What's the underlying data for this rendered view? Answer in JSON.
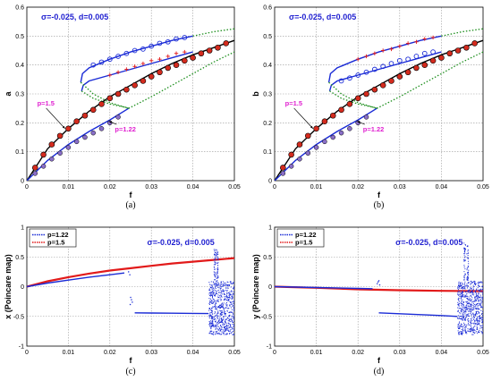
{
  "colors": {
    "blue": "#1a2bd6",
    "red": "#e21a1a",
    "green": "#1e8f1e",
    "black": "#000000",
    "magenta": "#e020d0",
    "marker_red": "#d42b1e",
    "marker_purple": "#8a6fc8"
  },
  "chart_data": [
    {
      "id": "a",
      "type": "line",
      "caption": "(a)",
      "xlabel": "f",
      "ylabel": "a",
      "xlim": [
        0,
        0.05
      ],
      "ylim": [
        0,
        0.6
      ],
      "xticks": [
        "0",
        "0.01",
        "0.02",
        "0.03",
        "0.04",
        "0.05"
      ],
      "yticks": [
        "0",
        "0.1",
        "0.2",
        "0.3",
        "0.4",
        "0.5",
        "0.6"
      ],
      "annotation": "σ=-0.025, d=0.005",
      "labels": [
        {
          "text": "p=1.5",
          "x": 0.0025,
          "y": 0.26
        },
        {
          "text": "p=1.22",
          "x": 0.0212,
          "y": 0.17
        }
      ],
      "series": [
        {
          "style": "solid-black",
          "x": [
            0,
            0.005,
            0.01,
            0.015,
            0.02,
            0.025,
            0.03,
            0.035,
            0.04,
            0.045,
            0.05
          ],
          "y": [
            0,
            0.11,
            0.18,
            0.24,
            0.29,
            0.33,
            0.37,
            0.405,
            0.435,
            0.46,
            0.485
          ]
        },
        {
          "style": "solid-blue",
          "x": [
            0,
            0.005,
            0.01,
            0.015,
            0.02,
            0.0245
          ],
          "y": [
            0,
            0.07,
            0.125,
            0.17,
            0.21,
            0.25
          ]
        },
        {
          "style": "solid-blue",
          "x": [
            0.013,
            0.0134,
            0.015,
            0.02,
            0.025,
            0.03,
            0.035,
            0.04
          ],
          "y": [
            0.34,
            0.37,
            0.39,
            0.42,
            0.445,
            0.465,
            0.485,
            0.5
          ]
        },
        {
          "style": "solid-blue",
          "x": [
            0.0132,
            0.0136,
            0.015,
            0.02,
            0.025,
            0.03,
            0.035,
            0.04
          ],
          "y": [
            0.31,
            0.33,
            0.345,
            0.365,
            0.385,
            0.405,
            0.425,
            0.445
          ]
        },
        {
          "style": "dotted-green",
          "x": [
            0.013,
            0.016,
            0.02,
            0.0245
          ],
          "y": [
            0.34,
            0.3,
            0.27,
            0.25
          ]
        },
        {
          "style": "dotted-green",
          "x": [
            0.0132,
            0.016,
            0.02,
            0.025
          ],
          "y": [
            0.31,
            0.285,
            0.265,
            0.25
          ]
        },
        {
          "style": "dotted-green",
          "x": [
            0.0245,
            0.03,
            0.035,
            0.04,
            0.045,
            0.05
          ],
          "y": [
            0.25,
            0.29,
            0.33,
            0.37,
            0.41,
            0.445
          ]
        },
        {
          "style": "dotted-green",
          "x": [
            0.04,
            0.045,
            0.05
          ],
          "y": [
            0.5,
            0.515,
            0.525
          ]
        },
        {
          "style": "markers-red",
          "x": [
            0.002,
            0.004,
            0.006,
            0.008,
            0.01,
            0.012,
            0.014,
            0.016,
            0.018,
            0.02,
            0.022,
            0.024,
            0.026,
            0.028,
            0.03,
            0.032,
            0.034,
            0.036,
            0.038,
            0.04,
            0.042,
            0.044,
            0.046,
            0.048
          ],
          "y": [
            0.045,
            0.09,
            0.125,
            0.155,
            0.18,
            0.205,
            0.225,
            0.245,
            0.265,
            0.285,
            0.3,
            0.315,
            0.33,
            0.345,
            0.36,
            0.375,
            0.39,
            0.4,
            0.415,
            0.425,
            0.44,
            0.45,
            0.46,
            0.475
          ]
        },
        {
          "style": "markers-purple",
          "x": [
            0.002,
            0.004,
            0.006,
            0.008,
            0.01,
            0.012,
            0.014,
            0.016,
            0.018,
            0.02,
            0.022
          ],
          "y": [
            0.025,
            0.05,
            0.075,
            0.095,
            0.115,
            0.135,
            0.15,
            0.165,
            0.18,
            0.2,
            0.22
          ]
        },
        {
          "style": "markers-open-blue",
          "x": [
            0.016,
            0.018,
            0.02,
            0.022,
            0.024,
            0.026,
            0.028,
            0.03,
            0.032,
            0.034,
            0.036,
            0.038
          ],
          "y": [
            0.4,
            0.41,
            0.42,
            0.43,
            0.44,
            0.45,
            0.455,
            0.465,
            0.475,
            0.48,
            0.49,
            0.495
          ]
        },
        {
          "style": "markers-plus-red",
          "x": [
            0.02,
            0.022,
            0.024,
            0.026,
            0.028,
            0.03,
            0.032,
            0.034,
            0.036,
            0.038
          ],
          "y": [
            0.365,
            0.375,
            0.385,
            0.395,
            0.405,
            0.415,
            0.42,
            0.43,
            0.44,
            0.445
          ]
        }
      ]
    },
    {
      "id": "b",
      "type": "line",
      "caption": "(b)",
      "xlabel": "f",
      "ylabel": "b",
      "xlim": [
        0,
        0.05
      ],
      "ylim": [
        0,
        0.6
      ],
      "xticks": [
        "0",
        "0.01",
        "0.02",
        "0.03",
        "0.04",
        "0.05"
      ],
      "yticks": [
        "0",
        "0.1",
        "0.2",
        "0.3",
        "0.4",
        "0.5",
        "0.6"
      ],
      "annotation": "σ=-0.025, d=0.005",
      "labels": [
        {
          "text": "p=1.5",
          "x": 0.0025,
          "y": 0.26
        },
        {
          "text": "p=1.22",
          "x": 0.0212,
          "y": 0.17
        }
      ],
      "series": [
        {
          "style": "solid-black",
          "x": [
            0,
            0.005,
            0.01,
            0.015,
            0.02,
            0.025,
            0.03,
            0.035,
            0.04,
            0.045,
            0.05
          ],
          "y": [
            0,
            0.11,
            0.18,
            0.24,
            0.29,
            0.33,
            0.37,
            0.405,
            0.435,
            0.46,
            0.485
          ]
        },
        {
          "style": "solid-blue",
          "x": [
            0,
            0.005,
            0.01,
            0.015,
            0.02,
            0.0245
          ],
          "y": [
            0,
            0.07,
            0.125,
            0.17,
            0.21,
            0.25
          ]
        },
        {
          "style": "solid-blue",
          "x": [
            0.013,
            0.0134,
            0.015,
            0.02,
            0.025,
            0.03,
            0.035,
            0.04
          ],
          "y": [
            0.34,
            0.37,
            0.39,
            0.42,
            0.445,
            0.465,
            0.485,
            0.5
          ]
        },
        {
          "style": "solid-blue",
          "x": [
            0.0132,
            0.0136,
            0.015,
            0.02,
            0.025,
            0.03,
            0.035,
            0.04
          ],
          "y": [
            0.31,
            0.33,
            0.345,
            0.365,
            0.385,
            0.405,
            0.425,
            0.445
          ]
        },
        {
          "style": "dotted-green",
          "x": [
            0.013,
            0.016,
            0.02,
            0.0245
          ],
          "y": [
            0.34,
            0.3,
            0.27,
            0.25
          ]
        },
        {
          "style": "dotted-green",
          "x": [
            0.0132,
            0.016,
            0.02,
            0.025
          ],
          "y": [
            0.31,
            0.285,
            0.265,
            0.25
          ]
        },
        {
          "style": "dotted-green",
          "x": [
            0.0245,
            0.03,
            0.035,
            0.04,
            0.045,
            0.05
          ],
          "y": [
            0.25,
            0.29,
            0.33,
            0.37,
            0.41,
            0.445
          ]
        },
        {
          "style": "dotted-green",
          "x": [
            0.04,
            0.045,
            0.05
          ],
          "y": [
            0.5,
            0.515,
            0.525
          ]
        },
        {
          "style": "markers-red",
          "x": [
            0.002,
            0.004,
            0.006,
            0.008,
            0.01,
            0.012,
            0.014,
            0.016,
            0.018,
            0.02,
            0.022,
            0.024,
            0.026,
            0.028,
            0.03,
            0.032,
            0.034,
            0.036,
            0.038,
            0.04,
            0.042,
            0.044,
            0.046,
            0.048
          ],
          "y": [
            0.045,
            0.09,
            0.125,
            0.155,
            0.18,
            0.205,
            0.225,
            0.245,
            0.265,
            0.285,
            0.3,
            0.315,
            0.33,
            0.345,
            0.36,
            0.375,
            0.39,
            0.4,
            0.415,
            0.425,
            0.44,
            0.45,
            0.46,
            0.475
          ]
        },
        {
          "style": "markers-purple",
          "x": [
            0.002,
            0.004,
            0.006,
            0.008,
            0.01,
            0.012,
            0.014,
            0.016,
            0.018,
            0.02,
            0.022
          ],
          "y": [
            0.025,
            0.05,
            0.075,
            0.095,
            0.115,
            0.135,
            0.15,
            0.165,
            0.18,
            0.2,
            0.22
          ]
        },
        {
          "style": "markers-open-blue",
          "x": [
            0.016,
            0.018,
            0.02,
            0.022,
            0.024,
            0.026,
            0.028,
            0.03,
            0.032,
            0.034,
            0.036,
            0.038
          ],
          "y": [
            0.345,
            0.355,
            0.365,
            0.375,
            0.385,
            0.395,
            0.405,
            0.415,
            0.42,
            0.43,
            0.44,
            0.445
          ]
        },
        {
          "style": "markers-plus-red",
          "x": [
            0.02,
            0.022,
            0.024,
            0.026,
            0.028,
            0.03,
            0.032,
            0.034,
            0.036,
            0.038
          ],
          "y": [
            0.42,
            0.43,
            0.44,
            0.45,
            0.455,
            0.465,
            0.475,
            0.48,
            0.49,
            0.495
          ]
        }
      ]
    },
    {
      "id": "c",
      "type": "scatter",
      "caption": "(c)",
      "xlabel": "f",
      "ylabel": "x (Poincare map)",
      "xlim": [
        0,
        0.05
      ],
      "ylim": [
        -1,
        1
      ],
      "xticks": [
        "0",
        "0.01",
        "0.02",
        "0.03",
        "0.04",
        "0.05"
      ],
      "yticks": [
        "-1",
        "-0.5",
        "0",
        "0.5",
        "1"
      ],
      "annotation": "σ=-0.025, d=0.005",
      "legend": {
        "position": "top-left",
        "entries": [
          {
            "label": "p=1.22",
            "style": "blue"
          },
          {
            "label": "p=1.5",
            "style": "red"
          }
        ]
      },
      "series": [
        {
          "style": "red-curve",
          "x": [
            0,
            0.005,
            0.01,
            0.015,
            0.02,
            0.025,
            0.03,
            0.035,
            0.04,
            0.045,
            0.05
          ],
          "y": [
            0,
            0.09,
            0.16,
            0.22,
            0.27,
            0.31,
            0.35,
            0.39,
            0.42,
            0.45,
            0.48
          ]
        },
        {
          "style": "blue-curve",
          "x": [
            0,
            0.005,
            0.01,
            0.015,
            0.02,
            0.0235
          ],
          "y": [
            0,
            0.06,
            0.11,
            0.16,
            0.2,
            0.23
          ]
        },
        {
          "style": "blue-curve",
          "x": [
            0.026,
            0.03,
            0.035,
            0.04,
            0.0438
          ],
          "y": [
            -0.44,
            -0.443,
            -0.446,
            -0.449,
            -0.452
          ]
        },
        {
          "style": "blue-dots",
          "x": [
            0.0245,
            0.0248,
            0.025,
            0.0252,
            0.0254,
            0.0249
          ],
          "y": [
            0.25,
            0.2,
            -0.18,
            -0.22,
            -0.26,
            -0.3
          ]
        },
        {
          "style": "blue-chaos",
          "x_range": [
            0.0438,
            0.05
          ],
          "y_range": [
            -0.8,
            0.1
          ],
          "spikes": [
            {
              "x": 0.0452,
              "y": 0.68
            },
            {
              "x": 0.0458,
              "y": 0.62
            }
          ]
        }
      ]
    },
    {
      "id": "d",
      "type": "scatter",
      "caption": "(d)",
      "xlabel": "f",
      "ylabel": "y (Poincare map)",
      "xlim": [
        0,
        0.05
      ],
      "ylim": [
        -1,
        1
      ],
      "xticks": [
        "0",
        "0.01",
        "0.02",
        "0.03",
        "0.04",
        "0.05"
      ],
      "yticks": [
        "-1",
        "-0.5",
        "0",
        "0.5",
        "1"
      ],
      "annotation": "σ=-0.025, d=0.005",
      "legend": {
        "position": "top-left",
        "entries": [
          {
            "label": "p=1.22",
            "style": "blue"
          },
          {
            "label": "p=1.5",
            "style": "red"
          }
        ]
      },
      "series": [
        {
          "style": "red-curve",
          "x": [
            0,
            0.01,
            0.02,
            0.03,
            0.04,
            0.05
          ],
          "y": [
            0,
            -0.02,
            -0.045,
            -0.06,
            -0.07,
            -0.075
          ]
        },
        {
          "style": "blue-curve",
          "x": [
            0,
            0.01,
            0.02,
            0.0235
          ],
          "y": [
            0,
            -0.015,
            -0.03,
            -0.035
          ]
        },
        {
          "style": "blue-curve",
          "x": [
            0.025,
            0.03,
            0.035,
            0.04,
            0.0438
          ],
          "y": [
            -0.44,
            -0.455,
            -0.47,
            -0.485,
            -0.5
          ]
        },
        {
          "style": "blue-dots",
          "x": [
            0.0246,
            0.0248,
            0.025,
            0.0252
          ],
          "y": [
            0.05,
            0.08,
            0.1,
            0.03
          ]
        },
        {
          "style": "blue-chaos",
          "x_range": [
            0.0438,
            0.05
          ],
          "y_range": [
            -0.8,
            0.1
          ],
          "spikes": [
            {
              "x": 0.0455,
              "y": 0.75
            },
            {
              "x": 0.0462,
              "y": 0.7
            }
          ]
        }
      ]
    }
  ]
}
